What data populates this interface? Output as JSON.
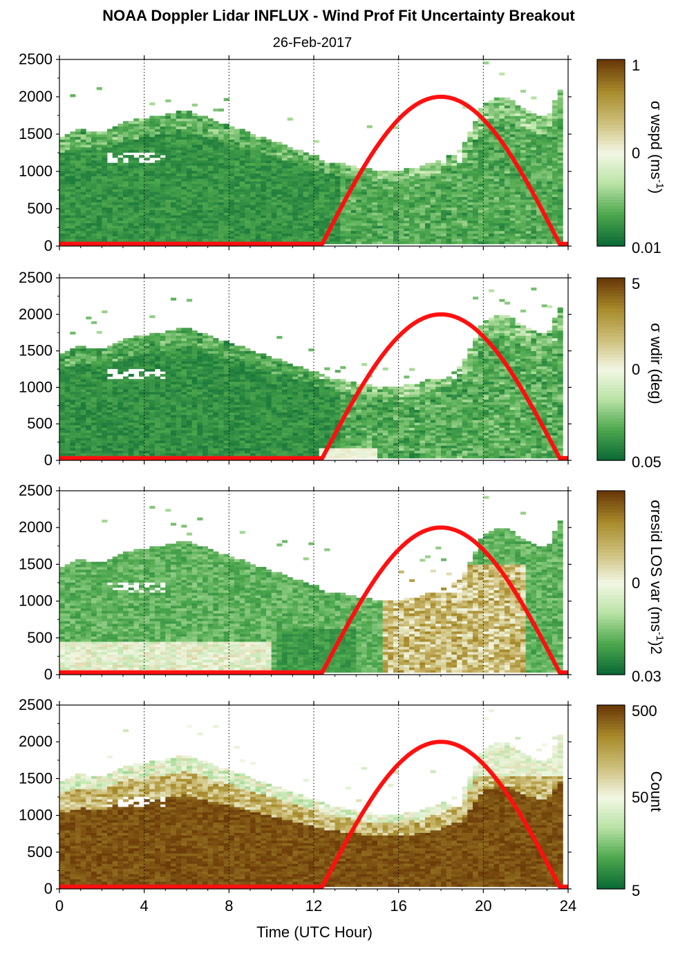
{
  "title": "NOAA Doppler Lidar INFLUX - Wind Prof Fit Uncertainty Breakout",
  "subtitle": "26-Feb-2017",
  "colors": {
    "green_dark": "#0b6b35",
    "green_mid": "#4ea84e",
    "green_light": "#b9e3a6",
    "neutral": "#f2f7e4",
    "tan": "#cdbf7a",
    "olive": "#a88b2c",
    "brown_dark": "#6b3a08",
    "sun_curve": "#ff1010"
  },
  "chart_data": [
    {
      "type": "heatmap",
      "panel": "wspd",
      "xlabel": "",
      "ylabel": "",
      "xlim": [
        0,
        24
      ],
      "ylim": [
        0,
        2500
      ],
      "xticks": [
        "0",
        "4",
        "8",
        "12",
        "16",
        "20",
        "24"
      ],
      "yticks": [
        "0",
        "500",
        "1000",
        "1500",
        "2000",
        "2500"
      ],
      "colorbar": {
        "label": "σ wspd (ms",
        "label_sup": "-1",
        "label_tail": ")",
        "ticks": [
          "1",
          "0",
          "0.01"
        ],
        "scale": "log"
      },
      "top_profile": {
        "hours": [
          0,
          1,
          2,
          3,
          4,
          5,
          6,
          7,
          8,
          9,
          10,
          11,
          12,
          13,
          14,
          15,
          16,
          17,
          18,
          19,
          20,
          21,
          22,
          23,
          24
        ],
        "top_m": [
          1450,
          1550,
          1500,
          1650,
          1700,
          1750,
          1800,
          1700,
          1600,
          1500,
          1400,
          1300,
          1200,
          1100,
          1050,
          1000,
          1000,
          1050,
          1150,
          1300,
          1900,
          2000,
          1800,
          1700,
          2300
        ]
      }
    },
    {
      "type": "heatmap",
      "panel": "wdir",
      "xlabel": "",
      "ylabel": "",
      "xlim": [
        0,
        24
      ],
      "ylim": [
        0,
        2500
      ],
      "xticks": [
        "0",
        "4",
        "8",
        "12",
        "16",
        "20",
        "24"
      ],
      "yticks": [
        "0",
        "500",
        "1000",
        "1500",
        "2000",
        "2500"
      ],
      "colorbar": {
        "label": "σ wdir (deg)",
        "label_sup": "",
        "label_tail": "",
        "ticks": [
          "5",
          "0",
          "0.05"
        ],
        "scale": "log"
      },
      "top_profile": {
        "hours": [
          0,
          1,
          2,
          3,
          4,
          5,
          6,
          7,
          8,
          9,
          10,
          11,
          12,
          13,
          14,
          15,
          16,
          17,
          18,
          19,
          20,
          21,
          22,
          23,
          24
        ],
        "top_m": [
          1450,
          1550,
          1500,
          1650,
          1700,
          1750,
          1800,
          1700,
          1600,
          1500,
          1400,
          1300,
          1200,
          1100,
          1050,
          1000,
          1000,
          1050,
          1150,
          1300,
          1900,
          2000,
          1800,
          1700,
          2300
        ]
      }
    },
    {
      "type": "heatmap",
      "panel": "resid",
      "xlabel": "",
      "ylabel": "",
      "xlim": [
        0,
        24
      ],
      "ylim": [
        0,
        2500
      ],
      "xticks": [
        "0",
        "4",
        "8",
        "12",
        "16",
        "20",
        "24"
      ],
      "yticks": [
        "0",
        "500",
        "1000",
        "1500",
        "2000",
        "2500"
      ],
      "colorbar": {
        "label": "σresid LOS var (ms",
        "label_sup": "-1",
        "label_tail": ")2",
        "ticks": [
          "",
          "0",
          "0.03"
        ],
        "scale": "log"
      },
      "top_profile": {
        "hours": [
          0,
          1,
          2,
          3,
          4,
          5,
          6,
          7,
          8,
          9,
          10,
          11,
          12,
          13,
          14,
          15,
          16,
          17,
          18,
          19,
          20,
          21,
          22,
          23,
          24
        ],
        "top_m": [
          1450,
          1550,
          1500,
          1650,
          1700,
          1750,
          1800,
          1700,
          1600,
          1500,
          1400,
          1300,
          1200,
          1100,
          1050,
          1000,
          1000,
          1050,
          1150,
          1300,
          1900,
          2000,
          1800,
          1700,
          2300
        ]
      }
    },
    {
      "type": "heatmap",
      "panel": "count",
      "xlabel": "Time (UTC Hour)",
      "ylabel": "",
      "xlim": [
        0,
        24
      ],
      "ylim": [
        0,
        2500
      ],
      "xticks": [
        "0",
        "4",
        "8",
        "12",
        "16",
        "20",
        "24"
      ],
      "yticks": [
        "0",
        "500",
        "1000",
        "1500",
        "2000",
        "2500"
      ],
      "colorbar": {
        "label": "Count",
        "label_sup": "",
        "label_tail": "",
        "ticks": [
          "500",
          "50",
          "5"
        ],
        "scale": "log"
      },
      "top_profile": {
        "hours": [
          0,
          1,
          2,
          3,
          4,
          5,
          6,
          7,
          8,
          9,
          10,
          11,
          12,
          13,
          14,
          15,
          16,
          17,
          18,
          19,
          20,
          21,
          22,
          23,
          24
        ],
        "top_m": [
          1450,
          1550,
          1500,
          1650,
          1700,
          1750,
          1800,
          1700,
          1600,
          1500,
          1400,
          1300,
          1200,
          1100,
          1050,
          1000,
          1000,
          1050,
          1150,
          1300,
          1900,
          2000,
          1800,
          1700,
          2300
        ]
      }
    }
  ],
  "sun_curve": {
    "description_hours": [
      12.4,
      18.0,
      23.6
    ],
    "peak_m": 2000,
    "base_m": 30
  },
  "vertical_gridlines_hours": [
    4,
    8,
    12,
    16,
    20
  ]
}
